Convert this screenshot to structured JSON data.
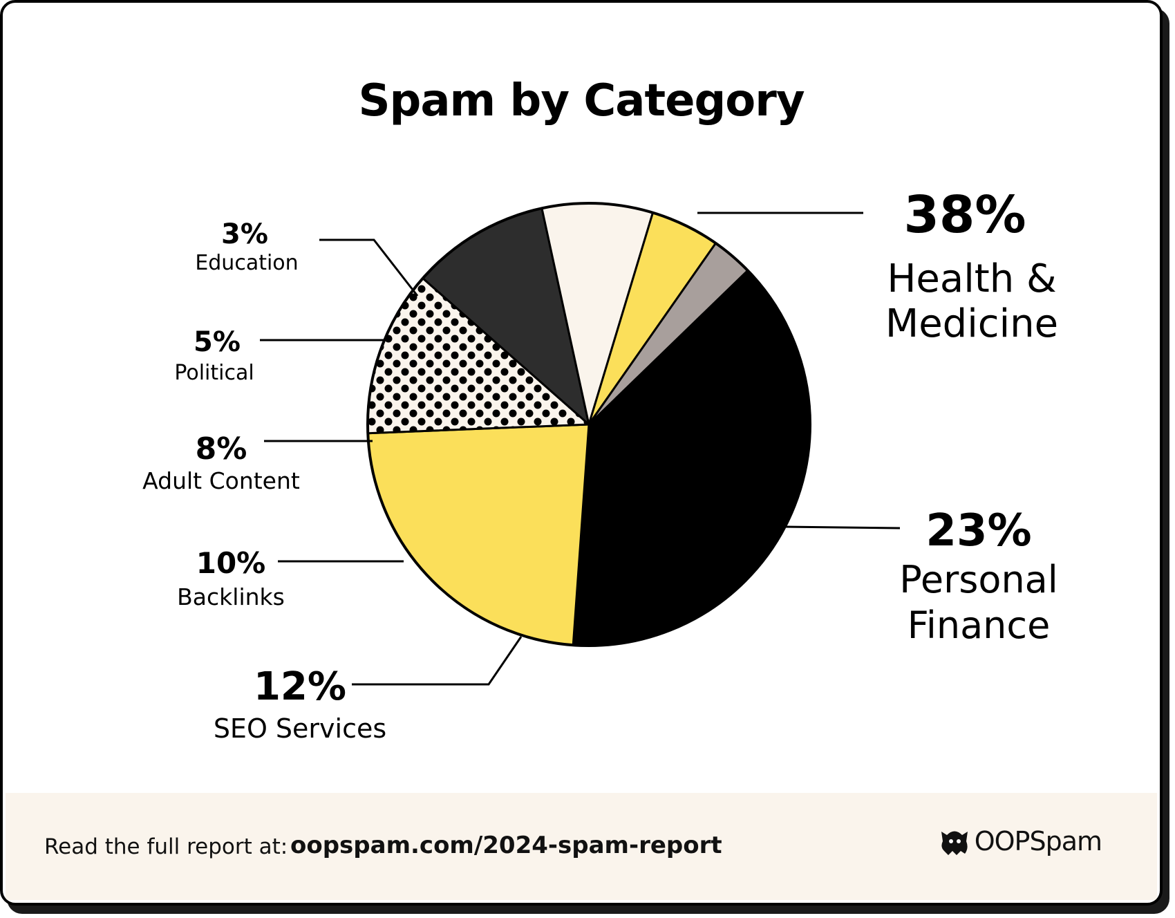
{
  "chart_data": {
    "type": "pie",
    "title": "Spam by Category",
    "slices": [
      {
        "label": "Health & Medicine",
        "label_lines": [
          "Health &",
          "Medicine"
        ],
        "value": 38,
        "display": "38%",
        "color": "#000000",
        "pattern": "solid"
      },
      {
        "label": "Personal Finance",
        "label_lines": [
          "Personal",
          "Finance"
        ],
        "value": 23,
        "display": "23%",
        "color": "#fbdf5a",
        "pattern": "solid"
      },
      {
        "label": "SEO Services",
        "label_lines": [
          "SEO Services"
        ],
        "value": 12,
        "display": "12%",
        "color": "#faf4ec",
        "pattern": "dots"
      },
      {
        "label": "Backlinks",
        "label_lines": [
          "Backlinks"
        ],
        "value": 10,
        "display": "10%",
        "color": "#2d2d2d",
        "pattern": "solid"
      },
      {
        "label": "Adult Content",
        "label_lines": [
          "Adult Content"
        ],
        "value": 8,
        "display": "8%",
        "color": "#faf4ec",
        "pattern": "solid"
      },
      {
        "label": "Political",
        "label_lines": [
          "Political"
        ],
        "value": 5,
        "display": "5%",
        "color": "#fbdf5a",
        "pattern": "solid"
      },
      {
        "label": "Education",
        "label_lines": [
          "Education"
        ],
        "value": 3,
        "display": "3%",
        "color": "#a89f9c",
        "pattern": "solid"
      }
    ]
  },
  "footer": {
    "lead": "Read the full report at:",
    "url": "oopspam.com/2024-spam-report",
    "brand": "OOPSpam",
    "brand_icon": "ghost-icon"
  }
}
